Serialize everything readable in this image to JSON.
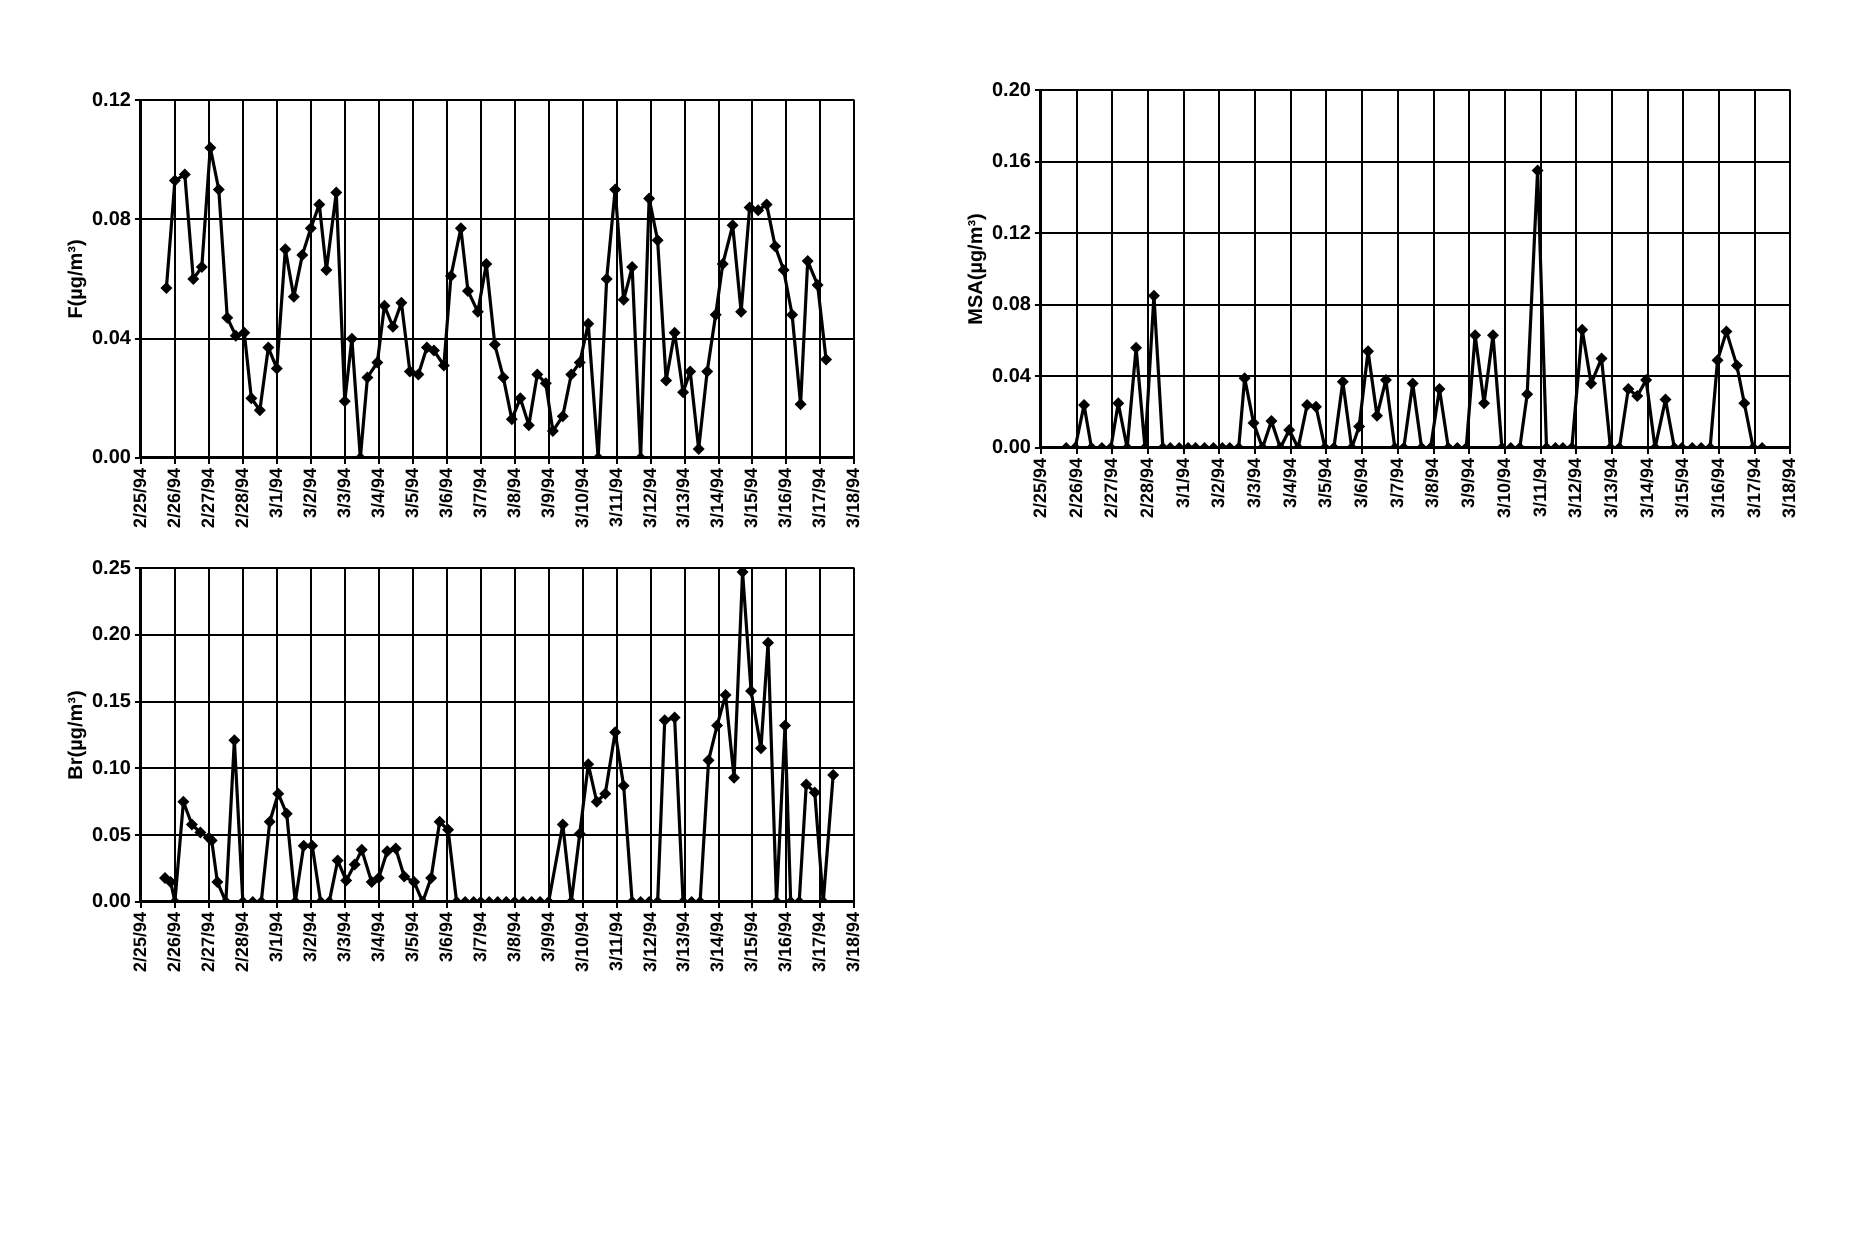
{
  "chart_data": [
    {
      "type": "line",
      "ylabel": "F(µg/m³)",
      "marker": "diamond",
      "grid": true,
      "legend": false,
      "xlim": [
        "1994-02-25",
        "1994-03-18"
      ],
      "xticks": [
        {
          "value": "1994-02-25",
          "label": "2/25/94"
        },
        {
          "value": "1994-02-26",
          "label": "2/26/94"
        },
        {
          "value": "1994-02-27",
          "label": "2/27/94"
        },
        {
          "value": "1994-02-28",
          "label": "2/28/94"
        },
        {
          "value": "1994-03-01",
          "label": "3/1/94"
        },
        {
          "value": "1994-03-02",
          "label": "3/2/94"
        },
        {
          "value": "1994-03-03",
          "label": "3/3/94"
        },
        {
          "value": "1994-03-04",
          "label": "3/4/94"
        },
        {
          "value": "1994-03-05",
          "label": "3/5/94"
        },
        {
          "value": "1994-03-06",
          "label": "3/6/94"
        },
        {
          "value": "1994-03-07",
          "label": "3/7/94"
        },
        {
          "value": "1994-03-08",
          "label": "3/8/94"
        },
        {
          "value": "1994-03-09",
          "label": "3/9/94"
        },
        {
          "value": "1994-03-10",
          "label": "3/10/94"
        },
        {
          "value": "1994-03-11",
          "label": "3/11/94"
        },
        {
          "value": "1994-03-12",
          "label": "3/12/94"
        },
        {
          "value": "1994-03-13",
          "label": "3/13/94"
        },
        {
          "value": "1994-03-14",
          "label": "3/14/94"
        },
        {
          "value": "1994-03-15",
          "label": "3/15/94"
        },
        {
          "value": "1994-03-16",
          "label": "3/16/94"
        },
        {
          "value": "1994-03-17",
          "label": "3/17/94"
        },
        {
          "value": "1994-03-18",
          "label": "3/18/94"
        }
      ],
      "ylim": [
        0,
        0.12
      ],
      "yticks": [
        {
          "value": 0,
          "label": "0.00"
        },
        {
          "value": 0.04,
          "label": "0.04"
        },
        {
          "value": 0.08,
          "label": "0.08"
        },
        {
          "value": 0.12,
          "label": "0.12"
        }
      ],
      "x": [
        "1994-02-25T18:00",
        "1994-02-26T00:00",
        "1994-02-26T07:00",
        "1994-02-26T13:00",
        "1994-02-26T19:00",
        "1994-02-27T01:00",
        "1994-02-27T07:00",
        "1994-02-27T13:00",
        "1994-02-27T19:00",
        "1994-02-28T01:00",
        "1994-02-28T06:00",
        "1994-02-28T12:00",
        "1994-02-28T18:00",
        "1994-03-01T00:00",
        "1994-03-01T06:00",
        "1994-03-01T12:00",
        "1994-03-01T18:00",
        "1994-03-02T00:00",
        "1994-03-02T06:00",
        "1994-03-02T11:00",
        "1994-03-02T18:00",
        "1994-03-03T00:00",
        "1994-03-03T05:00",
        "1994-03-03T11:00",
        "1994-03-03T16:00",
        "1994-03-03T23:00",
        "1994-03-04T04:00",
        "1994-03-04T10:00",
        "1994-03-04T16:00",
        "1994-03-04T22:00",
        "1994-03-05T04:00",
        "1994-03-05T10:00",
        "1994-03-05T15:00",
        "1994-03-05T22:00",
        "1994-03-06T03:00",
        "1994-03-06T10:00",
        "1994-03-06T15:00",
        "1994-03-06T22:00",
        "1994-03-07T04:00",
        "1994-03-07T10:00",
        "1994-03-07T16:00",
        "1994-03-07T22:00",
        "1994-03-08T04:00",
        "1994-03-08T10:00",
        "1994-03-08T16:00",
        "1994-03-08T22:00",
        "1994-03-09T03:00",
        "1994-03-09T10:00",
        "1994-03-09T16:00",
        "1994-03-09T22:00",
        "1994-03-10T04:00",
        "1994-03-10T11:00",
        "1994-03-10T17:00",
        "1994-03-10T23:00",
        "1994-03-11T05:00",
        "1994-03-11T11:00",
        "1994-03-11T17:00",
        "1994-03-11T23:00",
        "1994-03-12T05:00",
        "1994-03-12T11:00",
        "1994-03-12T17:00",
        "1994-03-12T23:00",
        "1994-03-13T04:00",
        "1994-03-13T10:00",
        "1994-03-13T16:00",
        "1994-03-13T22:00",
        "1994-03-14T03:00",
        "1994-03-14T10:00",
        "1994-03-14T16:00",
        "1994-03-14T22:00",
        "1994-03-15T04:00",
        "1994-03-15T10:00",
        "1994-03-15T16:00",
        "1994-03-15T22:00",
        "1994-03-16T04:00",
        "1994-03-16T10:00",
        "1994-03-16T15:00",
        "1994-03-16T22:00",
        "1994-03-17T04:00"
      ],
      "series": [
        {
          "color": "#000000",
          "values": [
            0.057,
            0.093,
            0.095,
            0.06,
            0.064,
            0.104,
            0.09,
            0.047,
            0.041,
            0.042,
            0.02,
            0.016,
            0.037,
            0.03,
            0.07,
            0.054,
            0.068,
            0.077,
            0.085,
            0.063,
            0.089,
            0.019,
            0.04,
            0.0,
            0.027,
            0.032,
            0.051,
            0.044,
            0.052,
            0.029,
            0.028,
            0.037,
            0.036,
            0.031,
            0.061,
            0.077,
            0.056,
            0.049,
            0.065,
            0.038,
            0.027,
            0.013,
            0.02,
            0.011,
            0.028,
            0.025,
            0.009,
            0.014,
            0.028,
            0.032,
            0.045,
            0.0,
            0.06,
            0.09,
            0.053,
            0.064,
            0.0,
            0.087,
            0.073,
            0.026,
            0.042,
            0.022,
            0.029,
            0.003,
            0.029,
            0.048,
            0.065,
            0.078,
            0.049,
            0.084,
            0.083,
            0.085,
            0.071,
            0.063,
            0.048,
            0.018,
            0.066,
            0.058,
            0.033
          ]
        }
      ]
    },
    {
      "type": "line",
      "ylabel": "MSA(µg/m³)",
      "marker": "diamond",
      "grid": true,
      "legend": false,
      "xlim": [
        "1994-02-25",
        "1994-03-18"
      ],
      "xticks": [
        {
          "value": "1994-02-25",
          "label": "2/25/94"
        },
        {
          "value": "1994-02-26",
          "label": "2/26/94"
        },
        {
          "value": "1994-02-27",
          "label": "2/27/94"
        },
        {
          "value": "1994-02-28",
          "label": "2/28/94"
        },
        {
          "value": "1994-03-01",
          "label": "3/1/94"
        },
        {
          "value": "1994-03-02",
          "label": "3/2/94"
        },
        {
          "value": "1994-03-03",
          "label": "3/3/94"
        },
        {
          "value": "1994-03-04",
          "label": "3/4/94"
        },
        {
          "value": "1994-03-05",
          "label": "3/5/94"
        },
        {
          "value": "1994-03-06",
          "label": "3/6/94"
        },
        {
          "value": "1994-03-07",
          "label": "3/7/94"
        },
        {
          "value": "1994-03-08",
          "label": "3/8/94"
        },
        {
          "value": "1994-03-09",
          "label": "3/9/94"
        },
        {
          "value": "1994-03-10",
          "label": "3/10/94"
        },
        {
          "value": "1994-03-11",
          "label": "3/11/94"
        },
        {
          "value": "1994-03-12",
          "label": "3/12/94"
        },
        {
          "value": "1994-03-13",
          "label": "3/13/94"
        },
        {
          "value": "1994-03-14",
          "label": "3/14/94"
        },
        {
          "value": "1994-03-15",
          "label": "3/15/94"
        },
        {
          "value": "1994-03-16",
          "label": "3/16/94"
        },
        {
          "value": "1994-03-17",
          "label": "3/17/94"
        },
        {
          "value": "1994-03-18",
          "label": "3/18/94"
        }
      ],
      "ylim": [
        0,
        0.2
      ],
      "yticks": [
        {
          "value": 0,
          "label": "0.00"
        },
        {
          "value": 0.04,
          "label": "0.04"
        },
        {
          "value": 0.08,
          "label": "0.08"
        },
        {
          "value": 0.12,
          "label": "0.12"
        },
        {
          "value": 0.16,
          "label": "0.16"
        },
        {
          "value": 0.2,
          "label": "0.20"
        }
      ],
      "x": [
        "1994-02-25T17:00",
        "1994-02-25T23:00",
        "1994-02-26T05:00",
        "1994-02-26T10:00",
        "1994-02-26T17:00",
        "1994-02-26T23:00",
        "1994-02-27T04:00",
        "1994-02-27T10:00",
        "1994-02-27T16:00",
        "1994-02-27T22:00",
        "1994-02-28T04:00",
        "1994-02-28T10:00",
        "1994-02-28T15:00",
        "1994-02-28T21:00",
        "1994-03-01T03:00",
        "1994-03-01T08:00",
        "1994-03-01T14:00",
        "1994-03-01T20:00",
        "1994-03-02T02:00",
        "1994-03-02T07:00",
        "1994-03-02T13:00",
        "1994-03-02T17:00",
        "1994-03-02T23:00",
        "1994-03-03T05:00",
        "1994-03-03T11:00",
        "1994-03-03T17:00",
        "1994-03-03T23:00",
        "1994-03-04T05:00",
        "1994-03-04T11:00",
        "1994-03-04T17:00",
        "1994-03-04T23:00",
        "1994-03-05T05:00",
        "1994-03-05T11:00",
        "1994-03-05T17:00",
        "1994-03-05T22:00",
        "1994-03-06T04:00",
        "1994-03-06T10:00",
        "1994-03-06T16:00",
        "1994-03-06T22:00",
        "1994-03-07T04:00",
        "1994-03-07T10:00",
        "1994-03-07T16:00",
        "1994-03-07T22:00",
        "1994-03-08T04:00",
        "1994-03-08T10:00",
        "1994-03-08T16:00",
        "1994-03-08T22:00",
        "1994-03-09T04:00",
        "1994-03-09T10:00",
        "1994-03-09T16:00",
        "1994-03-09T22:00",
        "1994-03-10T04:00",
        "1994-03-10T10:00",
        "1994-03-10T15:00",
        "1994-03-10T22:00",
        "1994-03-11T04:00",
        "1994-03-11T10:00",
        "1994-03-11T15:00",
        "1994-03-11T21:00",
        "1994-03-12T04:00",
        "1994-03-12T10:00",
        "1994-03-12T17:00",
        "1994-03-12T23:00",
        "1994-03-13T05:00",
        "1994-03-13T11:00",
        "1994-03-13T17:00",
        "1994-03-13T23:00",
        "1994-03-14T05:00",
        "1994-03-14T12:00",
        "1994-03-14T18:00",
        "1994-03-14T23:00",
        "1994-03-15T06:00",
        "1994-03-15T12:00",
        "1994-03-15T18:00",
        "1994-03-15T23:00",
        "1994-03-16T05:00",
        "1994-03-16T12:00",
        "1994-03-16T17:00",
        "1994-03-16T23:00",
        "1994-03-17T05:00"
      ],
      "series": [
        {
          "color": "#000000",
          "values": [
            0,
            0,
            0.024,
            0,
            0,
            0,
            0.025,
            0,
            0.056,
            0,
            0.085,
            0,
            0,
            0,
            0,
            0,
            0,
            0,
            0,
            0,
            0,
            0.039,
            0.014,
            0,
            0.015,
            0,
            0.01,
            0,
            0.024,
            0.023,
            0,
            0,
            0.037,
            0,
            0.012,
            0.054,
            0.018,
            0.038,
            0,
            0,
            0.036,
            0,
            0,
            0.033,
            0,
            0,
            0,
            0.063,
            0.025,
            0.063,
            0,
            0,
            0,
            0.03,
            0.155,
            0,
            0,
            0,
            0,
            0.066,
            0.036,
            0.05,
            0,
            0,
            0.033,
            0.029,
            0.038,
            0,
            0.027,
            0,
            0,
            0,
            0,
            0,
            0.049,
            0.065,
            0.046,
            0.025,
            0,
            0
          ]
        }
      ]
    },
    {
      "type": "line",
      "ylabel": "Br(µg/m³)",
      "marker": "diamond",
      "grid": true,
      "legend": false,
      "xlim": [
        "1994-02-25",
        "1994-03-18"
      ],
      "xticks": [
        {
          "value": "1994-02-25",
          "label": "2/25/94"
        },
        {
          "value": "1994-02-26",
          "label": "2/26/94"
        },
        {
          "value": "1994-02-27",
          "label": "2/27/94"
        },
        {
          "value": "1994-02-28",
          "label": "2/28/94"
        },
        {
          "value": "1994-03-01",
          "label": "3/1/94"
        },
        {
          "value": "1994-03-02",
          "label": "3/2/94"
        },
        {
          "value": "1994-03-03",
          "label": "3/3/94"
        },
        {
          "value": "1994-03-04",
          "label": "3/4/94"
        },
        {
          "value": "1994-03-05",
          "label": "3/5/94"
        },
        {
          "value": "1994-03-06",
          "label": "3/6/94"
        },
        {
          "value": "1994-03-07",
          "label": "3/7/94"
        },
        {
          "value": "1994-03-08",
          "label": "3/8/94"
        },
        {
          "value": "1994-03-09",
          "label": "3/9/94"
        },
        {
          "value": "1994-03-10",
          "label": "3/10/94"
        },
        {
          "value": "1994-03-11",
          "label": "3/11/94"
        },
        {
          "value": "1994-03-12",
          "label": "3/12/94"
        },
        {
          "value": "1994-03-13",
          "label": "3/13/94"
        },
        {
          "value": "1994-03-14",
          "label": "3/14/94"
        },
        {
          "value": "1994-03-15",
          "label": "3/15/94"
        },
        {
          "value": "1994-03-16",
          "label": "3/16/94"
        },
        {
          "value": "1994-03-17",
          "label": "3/17/94"
        },
        {
          "value": "1994-03-18",
          "label": "3/18/94"
        }
      ],
      "ylim": [
        0,
        0.25
      ],
      "yticks": [
        {
          "value": 0,
          "label": "0.00"
        },
        {
          "value": 0.05,
          "label": "0.05"
        },
        {
          "value": 0.1,
          "label": "0.10"
        },
        {
          "value": 0.15,
          "label": "0.15"
        },
        {
          "value": 0.2,
          "label": "0.20"
        },
        {
          "value": 0.25,
          "label": "0.25"
        }
      ],
      "x": [
        "1994-02-25T17:00",
        "1994-02-25T21:00",
        "1994-02-26T00:00",
        "1994-02-26T06:00",
        "1994-02-26T12:00",
        "1994-02-26T18:00",
        "1994-02-27T00:00",
        "1994-02-27T02:00",
        "1994-02-27T06:00",
        "1994-02-27T12:00",
        "1994-02-27T18:00",
        "1994-02-28T00:00",
        "1994-02-28T07:00",
        "1994-02-28T13:00",
        "1994-02-28T19:00",
        "1994-03-01T01:00",
        "1994-03-01T07:00",
        "1994-03-01T13:00",
        "1994-03-01T19:00",
        "1994-03-02T01:00",
        "1994-03-02T07:00",
        "1994-03-02T13:00",
        "1994-03-02T19:00",
        "1994-03-03T01:00",
        "1994-03-03T07:00",
        "1994-03-03T12:00",
        "1994-03-03T19:00",
        "1994-03-04T00:00",
        "1994-03-04T06:00",
        "1994-03-04T12:00",
        "1994-03-04T18:00",
        "1994-03-05T01:00",
        "1994-03-05T07:00",
        "1994-03-05T13:00",
        "1994-03-05T19:00",
        "1994-03-06T01:00",
        "1994-03-06T07:00",
        "1994-03-06T13:00",
        "1994-03-06T19:00",
        "1994-03-07T00:00",
        "1994-03-07T06:00",
        "1994-03-07T12:00",
        "1994-03-07T18:00",
        "1994-03-08T00:00",
        "1994-03-08T06:00",
        "1994-03-08T12:00",
        "1994-03-08T18:00",
        "1994-03-09T00:00",
        "1994-03-09T10:00",
        "1994-03-09T16:00",
        "1994-03-09T22:00",
        "1994-03-10T04:00",
        "1994-03-10T10:00",
        "1994-03-10T16:00",
        "1994-03-10T23:00",
        "1994-03-11T05:00",
        "1994-03-11T11:00",
        "1994-03-11T17:00",
        "1994-03-11T23:00",
        "1994-03-12T05:00",
        "1994-03-12T10:00",
        "1994-03-12T17:00",
        "1994-03-12T23:00",
        "1994-03-13T05:00",
        "1994-03-13T11:00",
        "1994-03-13T17:00",
        "1994-03-13T23:00",
        "1994-03-14T05:00",
        "1994-03-14T11:00",
        "1994-03-14T17:00",
        "1994-03-14T23:00",
        "1994-03-15T06:00",
        "1994-03-15T11:00",
        "1994-03-15T17:00",
        "1994-03-15T23:00",
        "1994-03-16T03:00",
        "1994-03-16T09:00",
        "1994-03-16T14:00",
        "1994-03-16T20:00",
        "1994-03-17T02:00",
        "1994-03-17T09:00"
      ],
      "series": [
        {
          "color": "#000000",
          "values": [
            0.018,
            0.015,
            0,
            0.075,
            0.058,
            0.052,
            0.048,
            0.046,
            0.015,
            0,
            0.121,
            0,
            0,
            0,
            0.06,
            0.081,
            0.066,
            0,
            0.042,
            0.042,
            0,
            0,
            0.031,
            0.016,
            0.028,
            0.039,
            0.015,
            0.018,
            0.038,
            0.04,
            0.019,
            0.015,
            0,
            0.018,
            0.06,
            0.054,
            0,
            0,
            0,
            0,
            0,
            0,
            0,
            0,
            0,
            0,
            0,
            0,
            0.058,
            0,
            0.051,
            0.103,
            0.075,
            0.081,
            0.127,
            0.087,
            0,
            0,
            0,
            0,
            0.136,
            0.138,
            0,
            0,
            0,
            0.106,
            0.132,
            0.155,
            0.093,
            0.247,
            0.158,
            0.115,
            0.194,
            0,
            0.132,
            0,
            0,
            0.088,
            0.082,
            0,
            0.095
          ]
        }
      ]
    }
  ]
}
